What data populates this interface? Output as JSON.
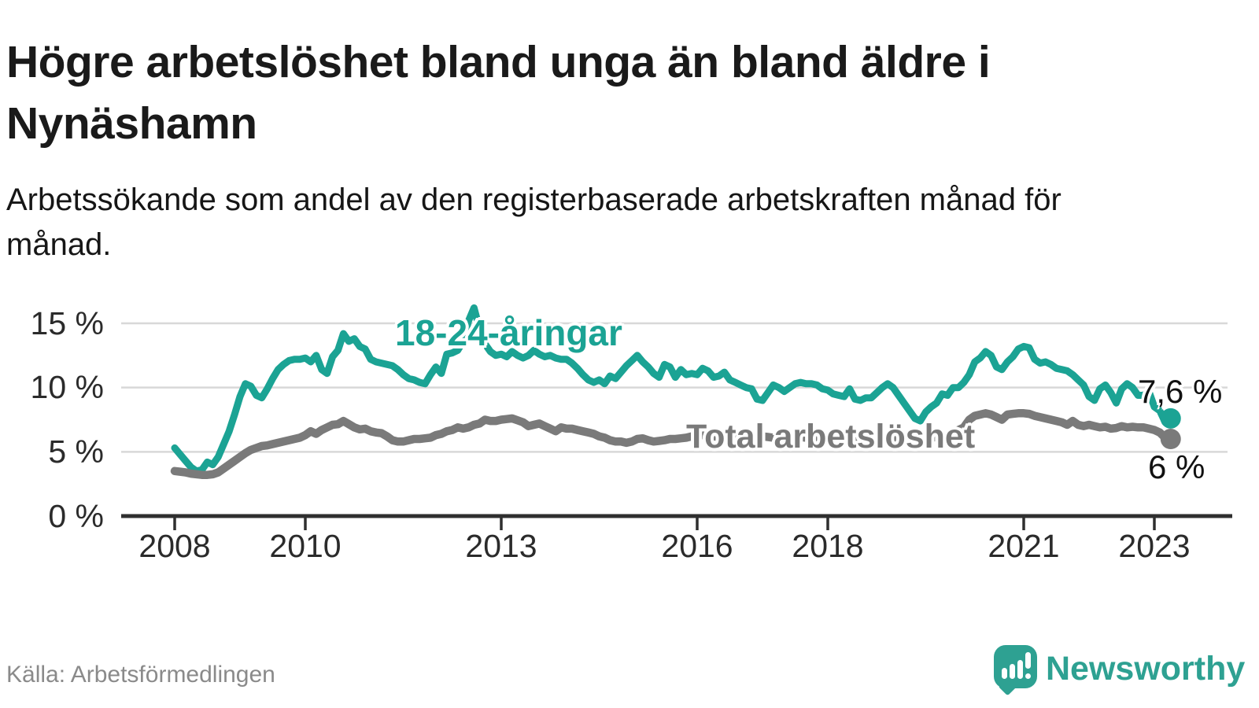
{
  "header": {
    "title": "Högre arbetslöshet bland unga än bland äldre i Nynäshamn",
    "subtitle": "Arbetssökande som andel av den registerbaserade arbetskraften månad för månad."
  },
  "footer": {
    "source": "Källa: Arbetsförmedlingen",
    "logo_text": "Newsworthy"
  },
  "colors": {
    "youth": "#1ba394",
    "total": "#7a7a7a",
    "axis": "#2f2f2f",
    "grid": "#d8d8d8",
    "text_dark": "#2b2b2b",
    "source_gray": "#8a8a8a",
    "logo_teal": "#2ea192",
    "background": "#ffffff"
  },
  "chart_data": {
    "type": "line",
    "x_unit": "month",
    "x_start": "2008-01",
    "x_end": "2023-04",
    "grid": "horizontal-only",
    "legend_position": "inline-labels",
    "ylim": [
      0,
      16.5
    ],
    "y_gridline_values": [
      5,
      10,
      15
    ],
    "y_tick_labels": [
      "15 %",
      "10 %",
      "5 %",
      "0 %"
    ],
    "x_tick_years": [
      2008,
      2010,
      2013,
      2016,
      2018,
      2021,
      2023
    ],
    "x_tick_labels": [
      "2008",
      "2010",
      "2013",
      "2016",
      "2018",
      "2021",
      "2023"
    ],
    "series": [
      {
        "id": "youth",
        "name": "18-24-åringar",
        "color": "#1ba394",
        "end_label": "7,6 %",
        "end_value": 7.6,
        "values": [
          5.3,
          4.8,
          4.3,
          3.8,
          3.5,
          3.6,
          4.2,
          4.0,
          4.6,
          5.6,
          6.6,
          7.9,
          9.3,
          10.3,
          10.1,
          9.4,
          9.2,
          9.9,
          10.7,
          11.4,
          11.8,
          12.1,
          12.2,
          12.2,
          12.3,
          12.0,
          12.5,
          11.4,
          11.1,
          12.4,
          12.9,
          14.2,
          13.6,
          13.8,
          13.2,
          13.0,
          12.2,
          12.0,
          11.9,
          11.8,
          11.7,
          11.4,
          11.0,
          10.7,
          10.6,
          10.4,
          10.3,
          11.0,
          11.6,
          11.1,
          12.6,
          12.7,
          12.9,
          13.6,
          15.2,
          16.2,
          14.6,
          13.4,
          12.8,
          12.5,
          12.6,
          12.4,
          12.8,
          12.5,
          12.3,
          12.5,
          12.9,
          12.6,
          12.4,
          12.5,
          12.3,
          12.2,
          12.2,
          11.9,
          11.5,
          11.0,
          10.6,
          10.4,
          10.6,
          10.3,
          10.9,
          10.7,
          11.2,
          11.7,
          12.1,
          12.5,
          12.0,
          11.6,
          11.1,
          10.8,
          11.8,
          11.6,
          10.8,
          11.4,
          11.0,
          11.1,
          11.0,
          11.5,
          11.3,
          10.8,
          10.9,
          11.2,
          10.6,
          10.4,
          10.2,
          10.0,
          9.9,
          9.1,
          9.0,
          9.6,
          10.2,
          10.0,
          9.7,
          10.0,
          10.3,
          10.4,
          10.3,
          10.3,
          10.2,
          9.9,
          9.8,
          9.5,
          9.4,
          9.3,
          9.9,
          9.1,
          9.0,
          9.2,
          9.2,
          9.6,
          10.0,
          10.3,
          10.0,
          9.4,
          8.8,
          8.2,
          7.6,
          7.4,
          8.1,
          8.5,
          8.8,
          9.5,
          9.4,
          10.0,
          10.0,
          10.4,
          11.0,
          12.0,
          12.3,
          12.8,
          12.5,
          11.6,
          11.4,
          12.0,
          12.4,
          13.0,
          13.2,
          13.1,
          12.2,
          11.9,
          12.0,
          11.8,
          11.5,
          11.4,
          11.3,
          11.0,
          10.6,
          10.2,
          9.3,
          9.0,
          9.9,
          10.2,
          9.6,
          8.8,
          9.9,
          10.3,
          10.0,
          9.4,
          9.4,
          9.7,
          8.5,
          8.2,
          7.3,
          7.6
        ]
      },
      {
        "id": "total",
        "name": "Total arbetslöshet",
        "color": "#7a7a7a",
        "end_label": "6 %",
        "end_value": 6.0,
        "values": [
          3.5,
          3.45,
          3.4,
          3.3,
          3.25,
          3.2,
          3.2,
          3.25,
          3.4,
          3.7,
          4.0,
          4.3,
          4.6,
          4.9,
          5.15,
          5.3,
          5.45,
          5.5,
          5.6,
          5.7,
          5.8,
          5.9,
          6.0,
          6.1,
          6.3,
          6.6,
          6.4,
          6.7,
          6.9,
          7.1,
          7.15,
          7.4,
          7.15,
          6.9,
          6.75,
          6.8,
          6.6,
          6.5,
          6.45,
          6.2,
          5.9,
          5.8,
          5.8,
          5.9,
          6.0,
          6.0,
          6.05,
          6.1,
          6.3,
          6.4,
          6.6,
          6.7,
          6.9,
          6.8,
          6.9,
          7.1,
          7.2,
          7.5,
          7.4,
          7.4,
          7.5,
          7.55,
          7.6,
          7.45,
          7.3,
          7.0,
          7.1,
          7.2,
          7.0,
          6.8,
          6.6,
          6.9,
          6.8,
          6.8,
          6.7,
          6.6,
          6.5,
          6.4,
          6.2,
          6.1,
          5.9,
          5.8,
          5.8,
          5.7,
          5.8,
          6.0,
          6.05,
          5.9,
          5.8,
          5.85,
          5.9,
          6.0,
          6.0,
          6.05,
          6.1,
          6.2,
          6.3,
          6.3,
          6.25,
          6.2,
          6.15,
          6.1,
          6.15,
          6.2,
          6.25,
          6.3,
          6.3,
          6.25,
          6.2,
          6.15,
          6.1,
          5.9,
          5.95,
          6.0,
          6.1,
          6.15,
          6.1,
          6.05,
          6.0,
          5.95,
          5.9,
          5.9,
          5.95,
          6.0,
          6.05,
          6.0,
          5.95,
          5.9,
          5.95,
          6.0,
          6.05,
          6.1,
          6.0,
          5.95,
          5.9,
          5.9,
          5.95,
          6.0,
          6.05,
          6.1,
          6.15,
          6.2,
          6.3,
          6.5,
          6.7,
          6.9,
          7.5,
          7.8,
          7.9,
          8.0,
          7.9,
          7.7,
          7.5,
          7.9,
          7.95,
          8.0,
          8.0,
          7.95,
          7.8,
          7.7,
          7.6,
          7.5,
          7.4,
          7.3,
          7.1,
          7.4,
          7.1,
          7.0,
          7.1,
          7.0,
          6.9,
          6.95,
          6.8,
          6.85,
          7.0,
          6.9,
          6.95,
          6.9,
          6.9,
          6.8,
          6.7,
          6.5,
          6.1,
          6.0
        ]
      }
    ]
  }
}
